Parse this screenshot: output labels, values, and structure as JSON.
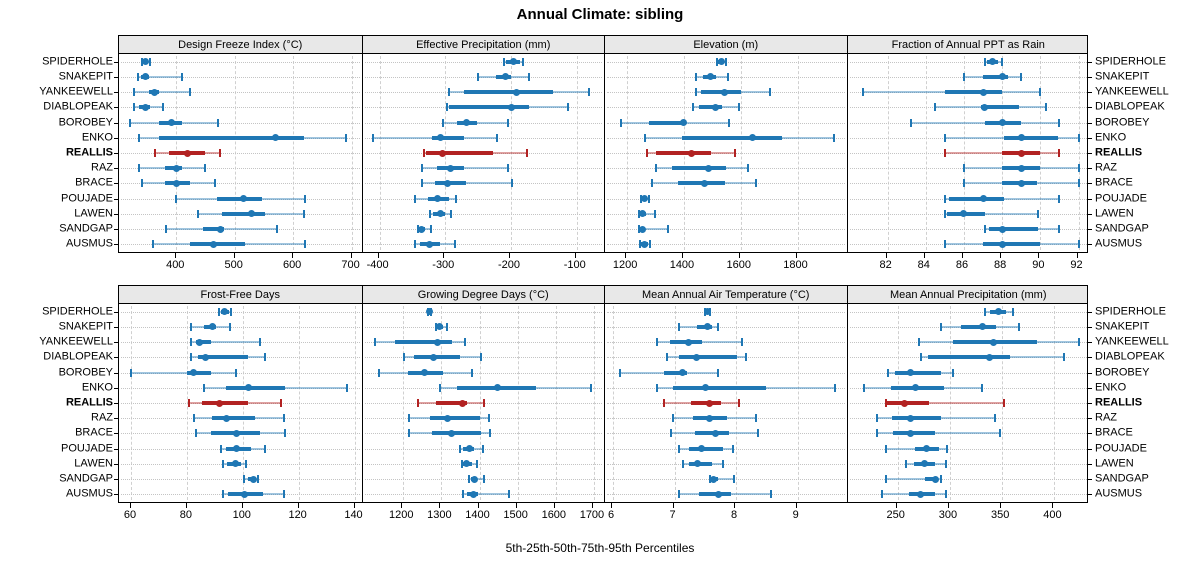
{
  "title": "Annual Climate: sibling",
  "caption": "5th-25th-50th-75th-95th Percentiles",
  "highlight_site": "REALLIS",
  "colors": {
    "series": "#1f77b4",
    "highlight": "#b22222",
    "grid": "#c4c4c4",
    "strip_bg": "#e8e8e8",
    "border": "#000000"
  },
  "chart_data": {
    "type": "dotplot",
    "subtype": "trellis-percentile-whiskers",
    "percentiles": [
      "5th",
      "25th",
      "50th",
      "75th",
      "95th"
    ],
    "legend_position": "none",
    "grid": "dotted",
    "sites": [
      "SPIDERHOLE",
      "SNAKEPIT",
      "YANKEEWELL",
      "DIABLOPEAK",
      "BOROBEY",
      "ENKO",
      "REALLIS",
      "RAZ",
      "BRACE",
      "POUJADE",
      "LAWEN",
      "SANDGAP",
      "AUSMUS"
    ],
    "panels": [
      {
        "title": "Design Freeze Index (°C)",
        "row": 0,
        "col": 0,
        "x_domain": [
          302,
          717
        ],
        "x_ticks": [
          400,
          500,
          600,
          700
        ],
        "values": [
          [
            342,
            344,
            348,
            352,
            355
          ],
          [
            334,
            340,
            347,
            354,
            409
          ],
          [
            328,
            354,
            363,
            370,
            423
          ],
          [
            328,
            336,
            347,
            355,
            377
          ],
          [
            320,
            371,
            391,
            409,
            472
          ],
          [
            337,
            371,
            570,
            618,
            690
          ],
          [
            364,
            388,
            420,
            449,
            475
          ],
          [
            337,
            380,
            400,
            409,
            449
          ],
          [
            342,
            380,
            400,
            423,
            466
          ],
          [
            400,
            469,
            515,
            547,
            621
          ],
          [
            437,
            478,
            529,
            552,
            618
          ],
          [
            383,
            446,
            475,
            481,
            572
          ],
          [
            360,
            423,
            463,
            518,
            621
          ]
        ]
      },
      {
        "title": "Effective Precipitation (mm)",
        "row": 0,
        "col": 1,
        "x_domain": [
          -426,
          -57
        ],
        "x_ticks": [
          -400,
          -300,
          -200,
          -100
        ],
        "values": [
          [
            -210,
            -208,
            -196,
            -187,
            -182
          ],
          [
            -251,
            -223,
            -208,
            -200,
            -172
          ],
          [
            -295,
            -272,
            -192,
            -136,
            -82
          ],
          [
            -297,
            -294,
            -200,
            -172,
            -113
          ],
          [
            -303,
            -282,
            -267,
            -251,
            -205
          ],
          [
            -410,
            -321,
            -307,
            -272,
            -222
          ],
          [
            -333,
            -330,
            -304,
            -228,
            -176
          ],
          [
            -336,
            -313,
            -292,
            -272,
            -205
          ],
          [
            -336,
            -315,
            -297,
            -269,
            -198
          ],
          [
            -346,
            -326,
            -312,
            -295,
            -283
          ],
          [
            -324,
            -318,
            -307,
            -300,
            -291
          ],
          [
            -342,
            -340,
            -336,
            -331,
            -322
          ],
          [
            -346,
            -338,
            -324,
            -308,
            -285
          ]
        ]
      },
      {
        "title": "Elevation (m)",
        "row": 0,
        "col": 2,
        "x_domain": [
          1122,
          1976
        ],
        "x_ticks": [
          1200,
          1400,
          1600,
          1800
        ],
        "values": [
          [
            1517,
            1521,
            1532,
            1541,
            1547
          ],
          [
            1443,
            1467,
            1494,
            1512,
            1556
          ],
          [
            1443,
            1459,
            1543,
            1600,
            1702
          ],
          [
            1432,
            1453,
            1512,
            1535,
            1594
          ],
          [
            1180,
            1277,
            1398,
            1408,
            1559
          ],
          [
            1262,
            1392,
            1641,
            1744,
            1929
          ],
          [
            1271,
            1300,
            1427,
            1494,
            1580
          ],
          [
            1300,
            1359,
            1486,
            1547,
            1627
          ],
          [
            1288,
            1380,
            1471,
            1545,
            1653
          ],
          [
            1250,
            1253,
            1262,
            1268,
            1277
          ],
          [
            1243,
            1247,
            1255,
            1265,
            1298
          ],
          [
            1241,
            1243,
            1255,
            1262,
            1345
          ],
          [
            1247,
            1250,
            1262,
            1274,
            1282
          ]
        ]
      },
      {
        "title": "Fraction of Annual PPT as Rain",
        "row": 0,
        "col": 3,
        "x_domain": [
          79.9,
          92.6
        ],
        "x_ticks": [
          82,
          84,
          86,
          88,
          90,
          92
        ],
        "values": [
          [
            87.1,
            87.2,
            87.5,
            87.8,
            88.0
          ],
          [
            86.0,
            87.0,
            88.0,
            88.3,
            89.0
          ],
          [
            80.7,
            85.0,
            87.0,
            88.0,
            90.0
          ],
          [
            84.5,
            86.9,
            87.1,
            88.9,
            90.3
          ],
          [
            83.2,
            87.1,
            88.0,
            89.0,
            91.0
          ],
          [
            85.0,
            88.1,
            89.0,
            90.9,
            92.0
          ],
          [
            85.0,
            88.0,
            89.0,
            90.0,
            91.0
          ],
          [
            86.0,
            88.0,
            89.0,
            90.0,
            92.0
          ],
          [
            86.0,
            88.0,
            89.0,
            89.8,
            92.0
          ],
          [
            85.0,
            85.2,
            87.0,
            88.1,
            91.0
          ],
          [
            85.0,
            85.1,
            86.0,
            87.1,
            89.9
          ],
          [
            87.1,
            87.3,
            88.0,
            89.9,
            91.0
          ],
          [
            85.0,
            87.0,
            88.0,
            90.0,
            92.0
          ]
        ]
      },
      {
        "title": "Frost-Free Days",
        "row": 1,
        "col": 0,
        "x_domain": [
          55.7,
          142.5
        ],
        "x_ticks": [
          60,
          80,
          100,
          120,
          140
        ],
        "values": [
          [
            91.4,
            92.3,
            93.5,
            95.0,
            95.9
          ],
          [
            81.5,
            86.3,
            89.1,
            90.3,
            95.3
          ],
          [
            81.5,
            83.3,
            84.5,
            88.7,
            106.1
          ],
          [
            81.5,
            83.9,
            86.7,
            101.9,
            107.9
          ],
          [
            60.1,
            80.1,
            82.3,
            88.7,
            97.4
          ],
          [
            86.1,
            94.1,
            101.9,
            115.1,
            137.4
          ],
          [
            80.6,
            85.4,
            91.7,
            101.7,
            113.7
          ],
          [
            82.7,
            89.0,
            94.1,
            104.3,
            114.9
          ],
          [
            83.3,
            88.7,
            97.7,
            106.1,
            115.1
          ],
          [
            92.3,
            94.1,
            97.7,
            102.9,
            107.9
          ],
          [
            92.9,
            94.5,
            97.4,
            99.5,
            101.3
          ],
          [
            100.5,
            101.7,
            103.7,
            104.6,
            105.3
          ],
          [
            92.9,
            94.7,
            100.7,
            107.3,
            114.9
          ]
        ]
      },
      {
        "title": "Growing Degree Days (°C)",
        "row": 1,
        "col": 1,
        "x_domain": [
          1093,
          1729
        ],
        "x_ticks": [
          1200,
          1300,
          1400,
          1500,
          1600,
          1700
        ],
        "values": [
          [
            1265,
            1266,
            1269,
            1272,
            1273
          ],
          [
            1287,
            1289,
            1295,
            1304,
            1315
          ],
          [
            1126,
            1179,
            1291,
            1329,
            1362
          ],
          [
            1203,
            1229,
            1278,
            1348,
            1403
          ],
          [
            1136,
            1212,
            1256,
            1304,
            1379
          ],
          [
            1297,
            1340,
            1447,
            1547,
            1693
          ],
          [
            1238,
            1287,
            1355,
            1366,
            1412
          ],
          [
            1216,
            1269,
            1315,
            1400,
            1424
          ],
          [
            1216,
            1276,
            1326,
            1403,
            1428
          ],
          [
            1348,
            1356,
            1373,
            1386,
            1410
          ],
          [
            1353,
            1357,
            1366,
            1379,
            1393
          ],
          [
            1373,
            1377,
            1386,
            1394,
            1412
          ],
          [
            1356,
            1366,
            1384,
            1397,
            1477
          ]
        ]
      },
      {
        "title": "Mean Annual Air Temperature (°C)",
        "row": 1,
        "col": 2,
        "x_domain": [
          5.87,
          9.81
        ],
        "x_ticks": [
          6,
          7,
          8,
          9
        ],
        "values": [
          [
            7.49,
            7.5,
            7.53,
            7.56,
            7.57
          ],
          [
            7.08,
            7.37,
            7.54,
            7.61,
            7.7
          ],
          [
            6.71,
            6.93,
            7.22,
            7.45,
            8.1
          ],
          [
            6.87,
            7.07,
            7.36,
            8.02,
            8.16
          ],
          [
            6.12,
            6.83,
            7.13,
            7.2,
            7.71
          ],
          [
            6.71,
            6.98,
            7.5,
            8.48,
            9.61
          ],
          [
            6.83,
            7.26,
            7.56,
            7.75,
            8.04
          ],
          [
            6.97,
            7.3,
            7.56,
            7.86,
            8.33
          ],
          [
            6.95,
            7.33,
            7.66,
            7.89,
            8.35
          ],
          [
            7.07,
            7.24,
            7.43,
            7.78,
            7.95
          ],
          [
            7.13,
            7.24,
            7.37,
            7.61,
            7.79
          ],
          [
            7.57,
            7.59,
            7.63,
            7.7,
            7.96
          ],
          [
            7.07,
            7.4,
            7.71,
            7.91,
            8.56
          ]
        ]
      },
      {
        "title": "Mean Annual Precipitation (mm)",
        "row": 1,
        "col": 3,
        "x_domain": [
          202,
          434
        ],
        "x_ticks": [
          250,
          300,
          350,
          400
        ],
        "values": [
          [
            334,
            338,
            346,
            354,
            360
          ],
          [
            291,
            311,
            331,
            344,
            366
          ],
          [
            270,
            303,
            342,
            383,
            423
          ],
          [
            272,
            279,
            338,
            357,
            409
          ],
          [
            241,
            247,
            262,
            291,
            303
          ],
          [
            218,
            244,
            267,
            294,
            331
          ],
          [
            239,
            240,
            257,
            280,
            352
          ],
          [
            230,
            245,
            262,
            291,
            343
          ],
          [
            230,
            246,
            262,
            286,
            348
          ],
          [
            239,
            267,
            278,
            290,
            297
          ],
          [
            258,
            266,
            276,
            286,
            296
          ],
          [
            239,
            276,
            286,
            288,
            291
          ],
          [
            235,
            261,
            272,
            286,
            296
          ]
        ]
      }
    ]
  }
}
